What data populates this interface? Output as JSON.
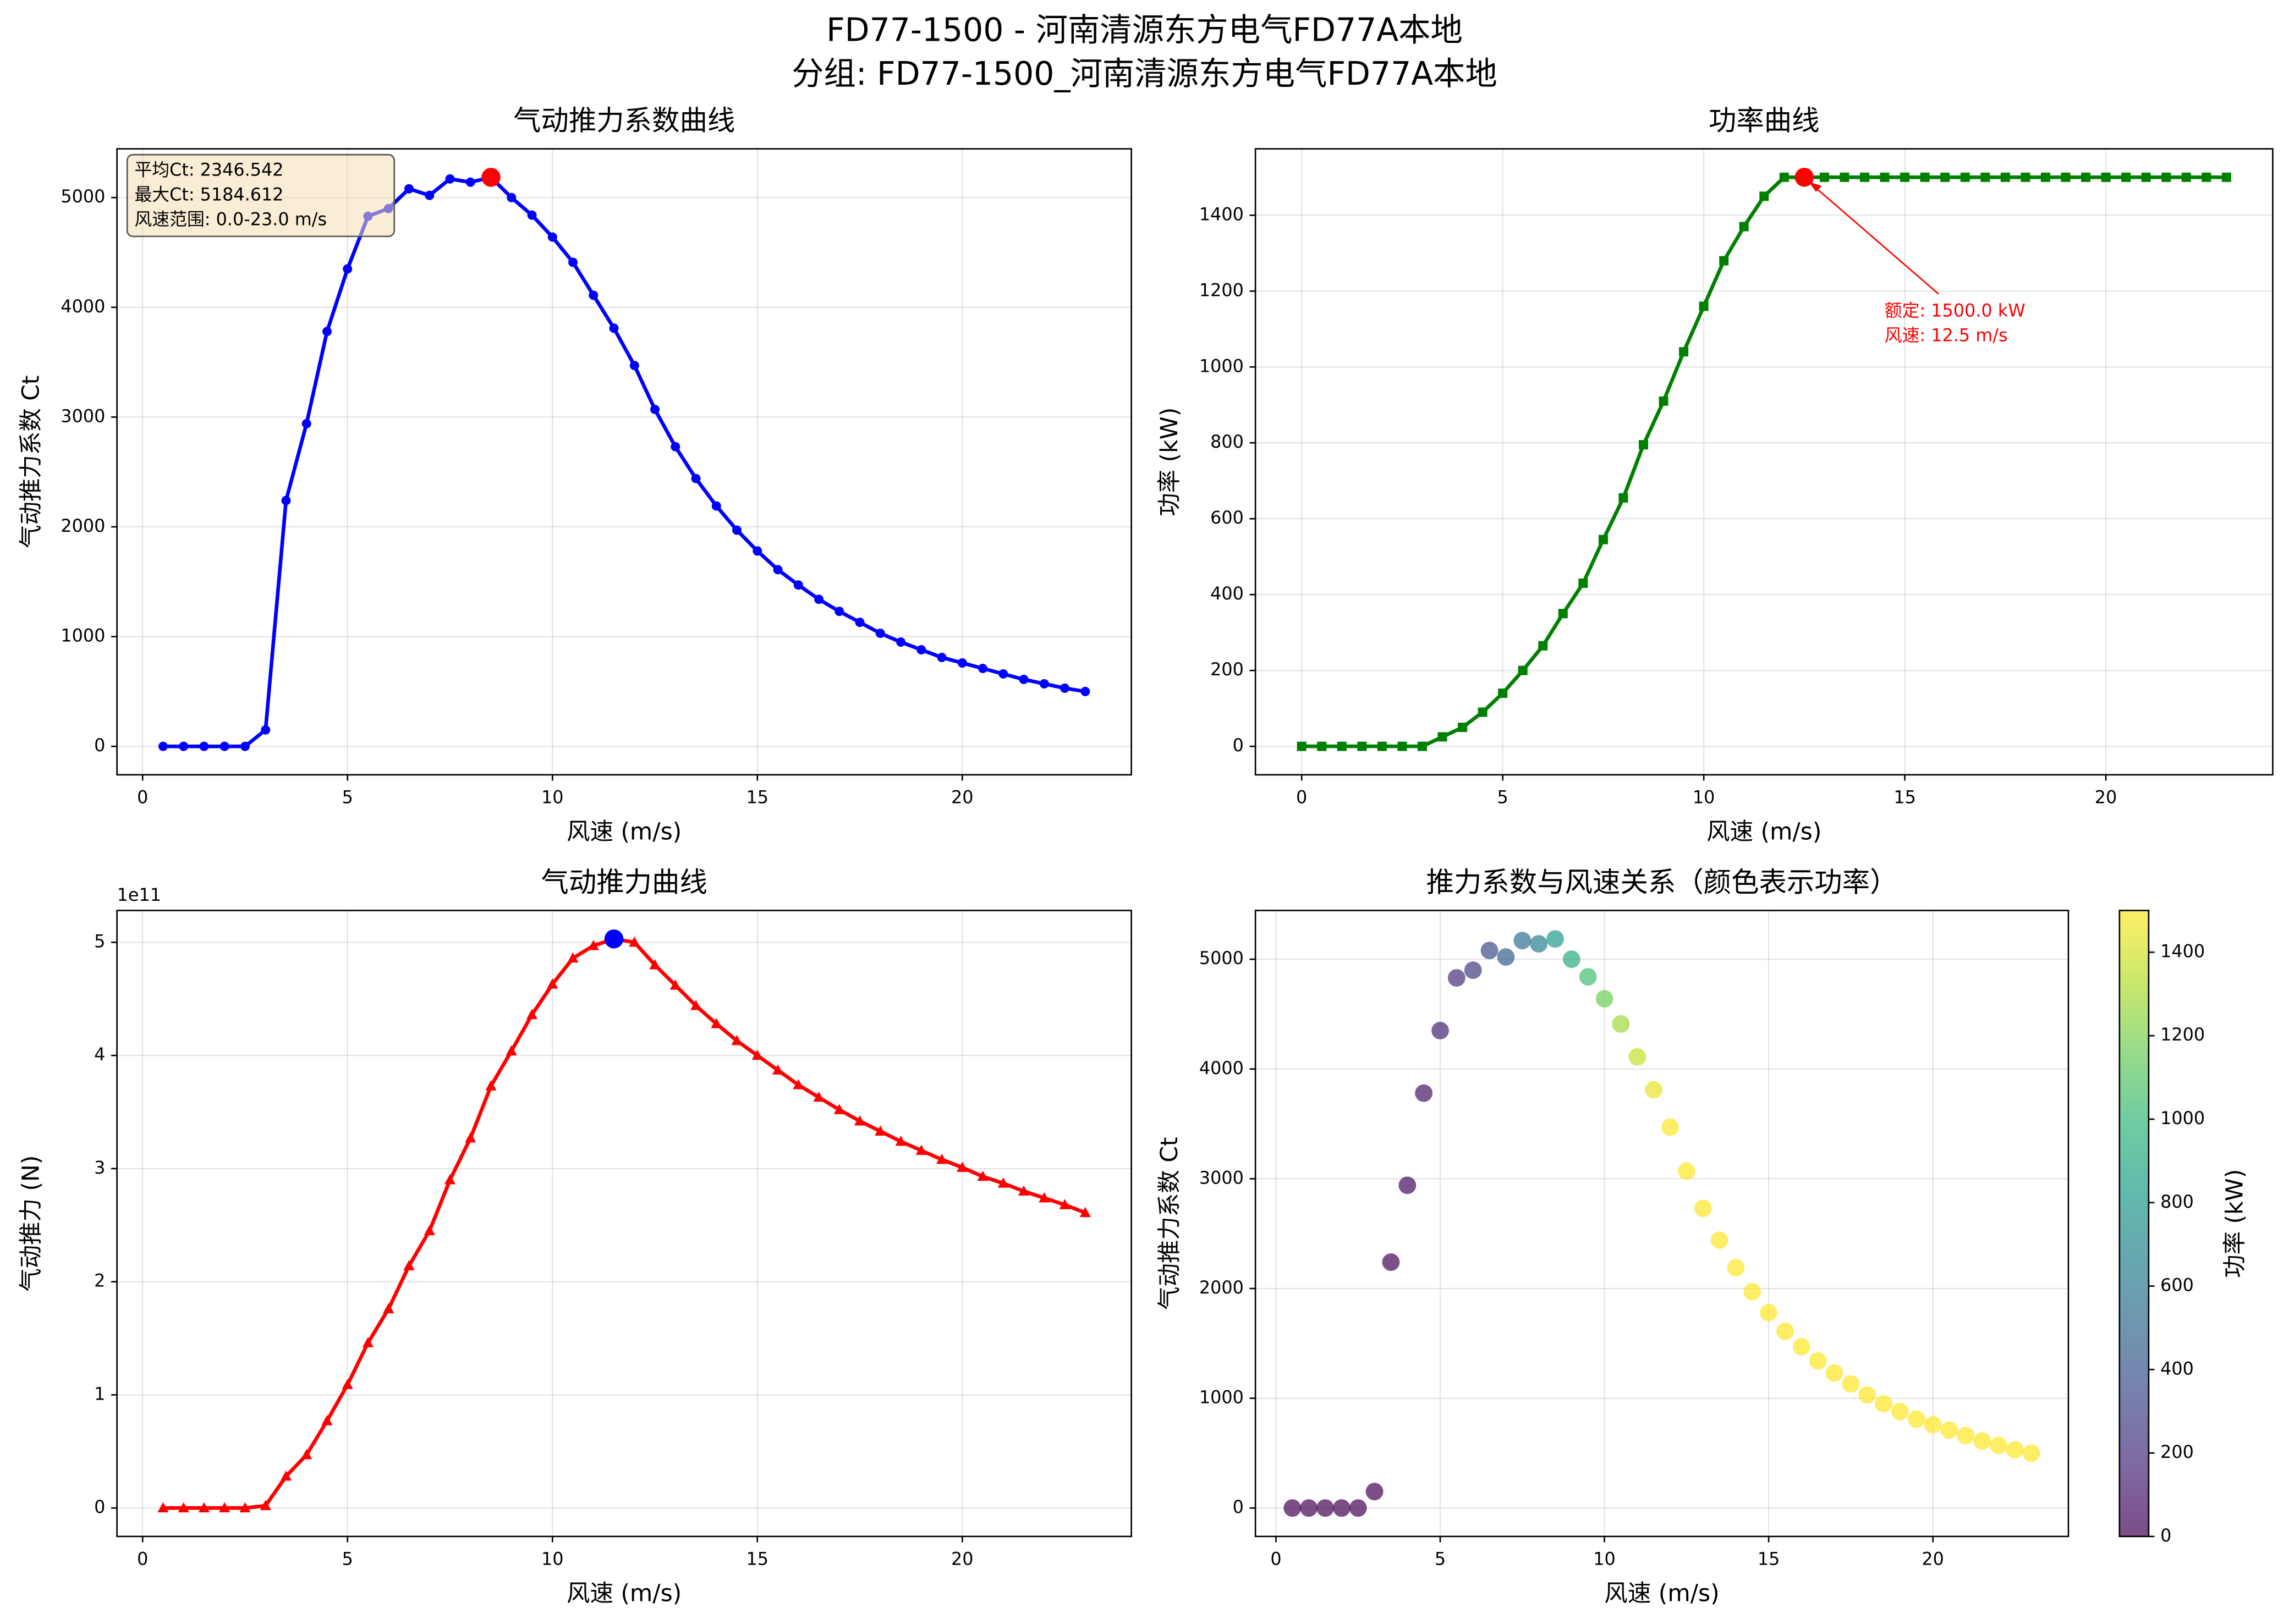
{
  "title": "FD77-1500 - 河南清源东方电气FD77A本地",
  "subtitle": "分组: FD77-1500_河南清源东方电气FD77A本地",
  "chart_data": [
    {
      "type": "line",
      "title": "气动推力系数曲线",
      "xlabel": "风速 (m/s)",
      "ylabel": "气动推力系数 Ct",
      "x": [
        0.5,
        1,
        1.5,
        2,
        2.5,
        3,
        3.5,
        4,
        4.5,
        5,
        5.5,
        6,
        6.5,
        7,
        7.5,
        8,
        8.5,
        9,
        9.5,
        10,
        10.5,
        11,
        11.5,
        12,
        12.5,
        13,
        13.5,
        14,
        14.5,
        15,
        15.5,
        16,
        16.5,
        17,
        17.5,
        18,
        18.5,
        19,
        19.5,
        20,
        20.5,
        21,
        21.5,
        22,
        22.5,
        23
      ],
      "series": [
        {
          "color": "#0000ff",
          "marker": "circle",
          "values": [
            0,
            0,
            0,
            0,
            0,
            150,
            2240,
            2940,
            3780,
            4350,
            4830,
            4900,
            5080,
            5020,
            5170,
            5140,
            5184.612,
            5000,
            4840,
            4640,
            4410,
            4110,
            3810,
            3470,
            3070,
            2730,
            2440,
            2190,
            1970,
            1780,
            1610,
            1470,
            1340,
            1230,
            1130,
            1030,
            950,
            880,
            810,
            760,
            710,
            660,
            610,
            570,
            530,
            500
          ]
        }
      ],
      "highlight": {
        "x": 8.5,
        "y": 5184.612,
        "color": "#ff0000"
      },
      "text_box": [
        "平均Ct: 2346.542",
        "最大Ct: 5184.612",
        "风速范围: 0.0-23.0 m/s"
      ],
      "xlim": [
        -0.625,
        24.125
      ],
      "ylim": [
        -259,
        5444
      ],
      "xticks": [
        0,
        5,
        10,
        15,
        20
      ],
      "yticks": [
        0,
        1000,
        2000,
        3000,
        4000,
        5000
      ],
      "grid": true
    },
    {
      "type": "line",
      "title": "功率曲线",
      "xlabel": "风速 (m/s)",
      "ylabel": "功率 (kW)",
      "x": [
        0,
        0.5,
        1,
        1.5,
        2,
        2.5,
        3,
        3.5,
        4,
        4.5,
        5,
        5.5,
        6,
        6.5,
        7,
        7.5,
        8,
        8.5,
        9,
        9.5,
        10,
        10.5,
        11,
        11.5,
        12,
        12.5,
        13,
        13.5,
        14,
        14.5,
        15,
        15.5,
        16,
        16.5,
        17,
        17.5,
        18,
        18.5,
        19,
        19.5,
        20,
        20.5,
        21,
        21.5,
        22,
        22.5,
        23
      ],
      "series": [
        {
          "color": "#008000",
          "marker": "square",
          "values": [
            0,
            0,
            0,
            0,
            0,
            0,
            0,
            25,
            50,
            90,
            140,
            200,
            265,
            350,
            430,
            545,
            655,
            795,
            910,
            1040,
            1160,
            1280,
            1370,
            1450,
            1500,
            1500,
            1500,
            1500,
            1500,
            1500,
            1500,
            1500,
            1500,
            1500,
            1500,
            1500,
            1500,
            1500,
            1500,
            1500,
            1500,
            1500,
            1500,
            1500,
            1500,
            1500,
            1500
          ]
        }
      ],
      "highlight": {
        "x": 12.5,
        "y": 1500,
        "color": "#ff0000"
      },
      "annotation": [
        "额定: 1500.0 kW",
        "风速: 12.5 m/s"
      ],
      "xlim": [
        -1.15,
        24.15
      ],
      "ylim": [
        -75,
        1575
      ],
      "xticks": [
        0,
        5,
        10,
        15,
        20
      ],
      "yticks": [
        0,
        200,
        400,
        600,
        800,
        1000,
        1200,
        1400
      ],
      "grid": true
    },
    {
      "type": "line",
      "title": "气动推力曲线",
      "xlabel": "风速 (m/s)",
      "ylabel": "气动推力 (N)",
      "y_offset_label": "1e11",
      "x": [
        0.5,
        1,
        1.5,
        2,
        2.5,
        3,
        3.5,
        4,
        4.5,
        5,
        5.5,
        6,
        6.5,
        7,
        7.5,
        8,
        8.5,
        9,
        9.5,
        10,
        10.5,
        11,
        11.5,
        12,
        12.5,
        13,
        13.5,
        14,
        14.5,
        15,
        15.5,
        16,
        16.5,
        17,
        17.5,
        18,
        18.5,
        19,
        19.5,
        20,
        20.5,
        21,
        21.5,
        22,
        22.5,
        23
      ],
      "series": [
        {
          "color": "#ff0000",
          "marker": "triangle",
          "values": [
            0,
            0,
            0,
            0,
            0,
            0.02,
            0.28,
            0.47,
            0.77,
            1.09,
            1.46,
            1.76,
            2.14,
            2.45,
            2.9,
            3.27,
            3.73,
            4.04,
            4.36,
            4.63,
            4.86,
            4.97,
            5.03,
            5.0,
            4.8,
            4.62,
            4.44,
            4.28,
            4.13,
            4.0,
            3.87,
            3.74,
            3.63,
            3.52,
            3.42,
            3.33,
            3.24,
            3.16,
            3.08,
            3.01,
            2.93,
            2.87,
            2.8,
            2.74,
            2.68,
            2.61
          ]
        }
      ],
      "highlight": {
        "x": 11.5,
        "y": 5.03,
        "color": "#0000ff"
      },
      "xlim": [
        -0.625,
        24.125
      ],
      "ylim": [
        -0.2515,
        5.2815
      ],
      "xticks": [
        0,
        5,
        10,
        15,
        20
      ],
      "yticks": [
        0,
        1,
        2,
        3,
        4,
        5
      ],
      "grid": true
    },
    {
      "type": "scatter",
      "title": "推力系数与风速关系（颜色表示功率）",
      "xlabel": "风速 (m/s)",
      "ylabel": "气动推力系数 Ct",
      "x": [
        0.5,
        1,
        1.5,
        2,
        2.5,
        3,
        3.5,
        4,
        4.5,
        5,
        5.5,
        6,
        6.5,
        7,
        7.5,
        8,
        8.5,
        9,
        9.5,
        10,
        10.5,
        11,
        11.5,
        12,
        12.5,
        13,
        13.5,
        14,
        14.5,
        15,
        15.5,
        16,
        16.5,
        17,
        17.5,
        18,
        18.5,
        19,
        19.5,
        20,
        20.5,
        21,
        21.5,
        22,
        22.5,
        23
      ],
      "series": [
        {
          "values": [
            0,
            0,
            0,
            0,
            0,
            150,
            2240,
            2940,
            3780,
            4350,
            4830,
            4900,
            5080,
            5020,
            5170,
            5140,
            5184.612,
            5000,
            4840,
            4640,
            4410,
            4110,
            3810,
            3470,
            3070,
            2730,
            2440,
            2190,
            1970,
            1780,
            1610,
            1470,
            1340,
            1230,
            1130,
            1030,
            950,
            880,
            810,
            760,
            710,
            660,
            610,
            570,
            530,
            500
          ],
          "color_values": [
            0,
            0,
            0,
            0,
            0,
            0,
            25,
            50,
            90,
            140,
            200,
            265,
            350,
            430,
            545,
            655,
            795,
            910,
            1040,
            1160,
            1280,
            1370,
            1450,
            1500,
            1500,
            1500,
            1500,
            1500,
            1500,
            1500,
            1500,
            1500,
            1500,
            1500,
            1500,
            1500,
            1500,
            1500,
            1500,
            1500,
            1500,
            1500,
            1500,
            1500,
            1500,
            1500
          ]
        }
      ],
      "colorbar": {
        "label": "功率 (kW)",
        "colormap": "viridis",
        "lim": [
          0,
          1500
        ],
        "ticks": [
          0,
          200,
          400,
          600,
          800,
          1000,
          1200,
          1400
        ]
      },
      "xlim": [
        -0.625,
        24.125
      ],
      "ylim": [
        -259,
        5444
      ],
      "xticks": [
        0,
        5,
        10,
        15,
        20
      ],
      "yticks": [
        0,
        1000,
        2000,
        3000,
        4000,
        5000
      ],
      "grid": true
    }
  ]
}
